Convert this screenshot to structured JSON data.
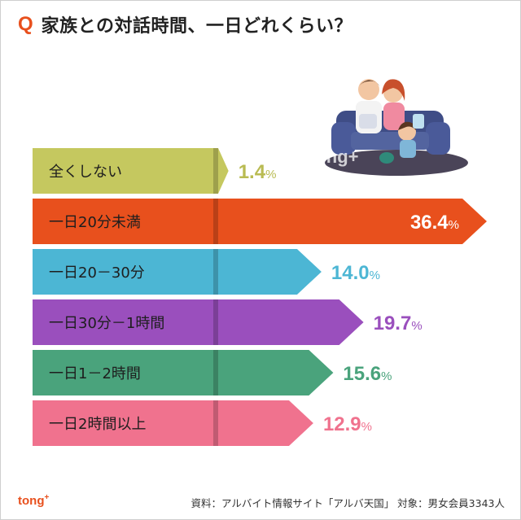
{
  "title": {
    "q_mark": "Q",
    "text": "家族との対話時間、一日どれくらい？"
  },
  "colors": {
    "accent": "#e8501d"
  },
  "chart_data": {
    "type": "bar",
    "orientation": "horizontal",
    "categories": [
      "全くしない",
      "一日20分未満",
      "一日20－30分",
      "一日30分－1時間",
      "一日1－2時間",
      "一日2時間以上"
    ],
    "values": [
      1.4,
      36.4,
      14.0,
      19.7,
      15.6,
      12.9
    ],
    "value_labels": [
      "1.4",
      "36.4",
      "14.0",
      "19.7",
      "15.6",
      "12.9"
    ],
    "unit": "%",
    "colors": [
      "#c5c85f",
      "#e8501d",
      "#4cb6d4",
      "#9a4fbd",
      "#4aa37c",
      "#f0728e"
    ],
    "label_colors": [
      "#b9bb52",
      "#ffffff",
      "#4cb6d4",
      "#9a4fbd",
      "#4aa37c",
      "#f0728e"
    ],
    "xlim": [
      0,
      36.4
    ],
    "title": "",
    "xlabel": "",
    "ylabel": ""
  },
  "watermark": "tong+",
  "brand": {
    "name": "tong",
    "sup": "+"
  },
  "source": "資料：アルバイト情報サイト「アルバ天国」 対象：男女会員3343人"
}
